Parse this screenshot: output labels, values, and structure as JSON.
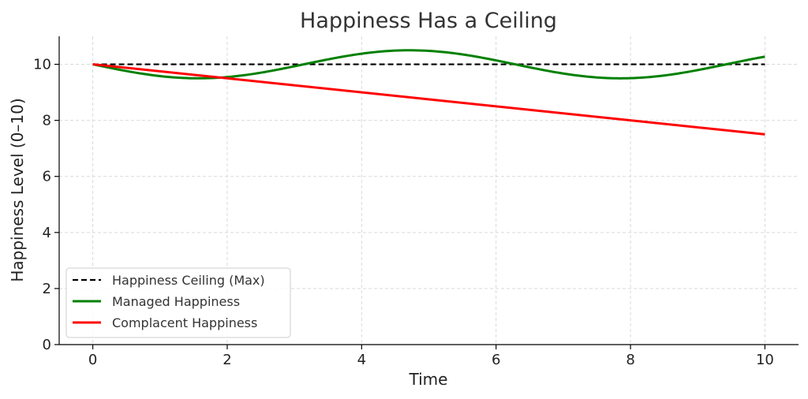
{
  "chart_data": {
    "type": "line",
    "title": "Happiness Has a Ceiling",
    "xlabel": "Time",
    "ylabel": "Happiness Level (0–10)",
    "xlim": [
      -0.5,
      10.5
    ],
    "ylim": [
      0,
      11
    ],
    "xticks": [
      0,
      2,
      4,
      6,
      8,
      10
    ],
    "yticks": [
      0,
      2,
      4,
      6,
      8,
      10
    ],
    "grid": true,
    "legend_position": "lower-left",
    "series": [
      {
        "name": "Happiness Ceiling (Max)",
        "color": "#000000",
        "style": "dashed",
        "x": [
          0,
          10
        ],
        "y": [
          10,
          10
        ]
      },
      {
        "name": "Managed Happiness",
        "color": "#008000",
        "style": "solid",
        "formula": "10 - 0.5*sin(x)",
        "x": [
          0,
          0.5,
          1,
          1.5,
          2,
          2.5,
          3,
          3.5,
          4,
          4.5,
          5,
          5.5,
          6,
          6.5,
          7,
          7.5,
          8,
          8.5,
          9,
          9.5,
          10
        ],
        "y": [
          10.0,
          9.76,
          9.58,
          9.5,
          9.55,
          9.7,
          9.93,
          10.18,
          10.38,
          10.49,
          10.48,
          10.35,
          10.14,
          9.89,
          9.67,
          9.53,
          9.51,
          9.6,
          9.79,
          10.04,
          10.27
        ]
      },
      {
        "name": "Complacent Happiness",
        "color": "#ff0000",
        "style": "solid",
        "x": [
          0,
          10
        ],
        "y": [
          10,
          7.5
        ]
      }
    ]
  }
}
